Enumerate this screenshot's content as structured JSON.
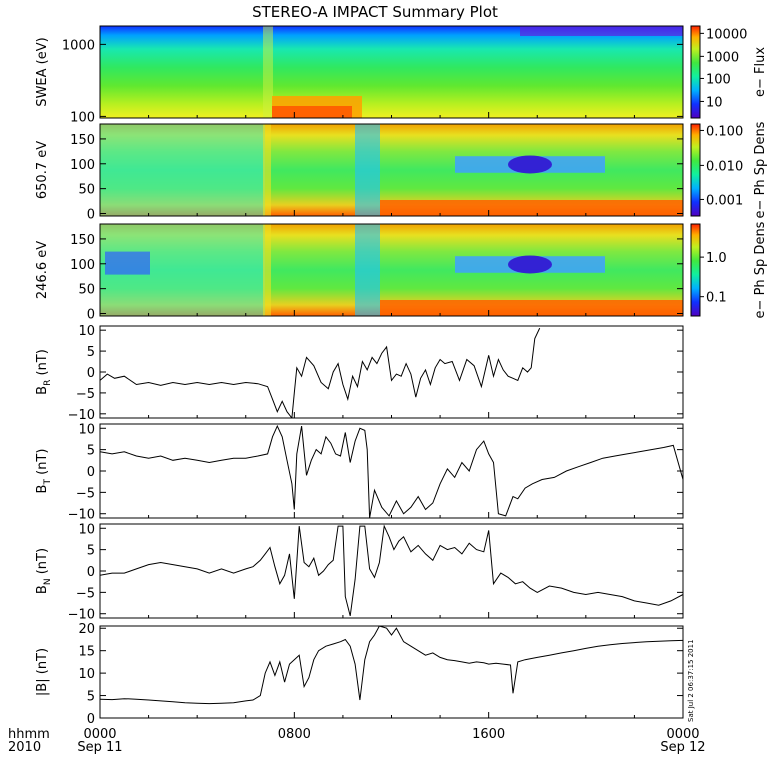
{
  "title": "STEREO-A IMPACT Summary Plot",
  "time_axis": {
    "row_label_1": "hhmm",
    "row_label_2": "2010",
    "ticks": [
      {
        "hhmm": "0000",
        "date": "Sep 11",
        "hour": 0
      },
      {
        "hhmm": "0800",
        "date": "",
        "hour": 8
      },
      {
        "hhmm": "1600",
        "date": "",
        "hour": 16
      },
      {
        "hhmm": "0000",
        "date": "Sep 12",
        "hour": 24
      }
    ]
  },
  "side_stamp": "Sat Jul  2 06:37:15 2011",
  "chart_data": [
    {
      "type": "heatmap",
      "ylabel": "SWEA (eV)",
      "yscale": "log",
      "ylim": [
        95,
        1800
      ],
      "yticks": [
        {
          "v": 100,
          "label": "100"
        },
        {
          "v": 1000,
          "label": "1000"
        }
      ],
      "colorbar": {
        "label": "e− Flux",
        "scale": "log",
        "ticks": [
          {
            "f": 0.92,
            "label": "10000"
          },
          {
            "f": 0.67,
            "label": "1000"
          },
          {
            "f": 0.43,
            "label": "100"
          },
          {
            "f": 0.18,
            "label": "10"
          }
        ]
      },
      "colors": [
        "#1020ff",
        "#00a0ff",
        "#18f090",
        "#40e840",
        "#a8f020",
        "#f0f020",
        "#ff9000"
      ]
    },
    {
      "type": "heatmap",
      "ylabel": "650.7 eV",
      "ylim": [
        -5,
        180
      ],
      "yticks": [
        {
          "v": 0,
          "label": "0"
        },
        {
          "v": 50,
          "label": "50"
        },
        {
          "v": 100,
          "label": "100"
        },
        {
          "v": 150,
          "label": "150"
        }
      ],
      "colorbar": {
        "label": "e− Ph Sp Dens",
        "scale": "log",
        "ticks": [
          {
            "f": 0.93,
            "label": "0.100"
          },
          {
            "f": 0.55,
            "label": "0.010"
          },
          {
            "f": 0.18,
            "label": "0.001"
          }
        ]
      }
    },
    {
      "type": "heatmap",
      "ylabel": "246.6 eV",
      "ylim": [
        -5,
        180
      ],
      "yticks": [
        {
          "v": 0,
          "label": "0"
        },
        {
          "v": 50,
          "label": "50"
        },
        {
          "v": 100,
          "label": "100"
        },
        {
          "v": 150,
          "label": "150"
        }
      ],
      "colorbar": {
        "label": "e− Ph Sp Dens",
        "scale": "log",
        "ticks": [
          {
            "f": 0.64,
            "label": "1.0"
          },
          {
            "f": 0.21,
            "label": "0.1"
          }
        ]
      }
    },
    {
      "type": "line",
      "ylabel": "B_R (nT)",
      "ylabel_main": "B",
      "ylabel_sub": "R",
      "ylabel_unit": "(nT)",
      "ylim": [
        -11,
        11
      ],
      "yticks": [
        {
          "v": -10,
          "label": "−10"
        },
        {
          "v": -5,
          "label": "−5"
        },
        {
          "v": 0,
          "label": "0"
        },
        {
          "v": 5,
          "label": "5"
        },
        {
          "v": 10,
          "label": "10"
        }
      ],
      "x": [
        0,
        0.3,
        0.6,
        1,
        1.5,
        2,
        2.5,
        3,
        3.5,
        4,
        4.5,
        5,
        5.5,
        6,
        6.5,
        6.9,
        7.1,
        7.3,
        7.5,
        7.7,
        7.9,
        8.0,
        8.1,
        8.3,
        8.5,
        8.8,
        9.1,
        9.4,
        9.6,
        9.8,
        10.0,
        10.2,
        10.4,
        10.6,
        10.8,
        11.0,
        11.2,
        11.4,
        11.6,
        11.8,
        12.0,
        12.2,
        12.4,
        12.6,
        12.8,
        13.0,
        13.2,
        13.4,
        13.6,
        13.8,
        14.0,
        14.2,
        14.5,
        14.8,
        15.1,
        15.4,
        15.7,
        16.0,
        16.2,
        16.4,
        16.6,
        16.8,
        17.0,
        17.2,
        17.4,
        17.6,
        17.75,
        17.9,
        18.1
      ],
      "values": [
        -2.0,
        -0.5,
        -1.5,
        -1.0,
        -3.0,
        -2.5,
        -3.2,
        -2.5,
        -3.0,
        -2.5,
        -3.0,
        -2.5,
        -3.0,
        -2.5,
        -2.8,
        -3.5,
        -6.5,
        -9.5,
        -7.0,
        -9.5,
        -11.0,
        -5.0,
        1.0,
        -1.0,
        3.5,
        1.5,
        -2.5,
        -4.0,
        0.0,
        2.0,
        -3.0,
        -6.5,
        -1.0,
        -3.5,
        2.5,
        0.5,
        3.5,
        2.0,
        4.5,
        6.0,
        -2.0,
        -0.5,
        -1.0,
        2.0,
        -0.5,
        -6.0,
        -1.5,
        0.5,
        -3.0,
        1.0,
        3.0,
        2.0,
        2.5,
        -2.0,
        3.0,
        1.5,
        -3.5,
        4.0,
        -1.0,
        3.0,
        0.5,
        -1.0,
        -1.5,
        -2.0,
        1.0,
        0.0,
        1.0,
        8.0,
        10.5
      ]
    },
    {
      "type": "line",
      "ylabel": "B_T (nT)",
      "ylabel_main": "B",
      "ylabel_sub": "T",
      "ylabel_unit": "(nT)",
      "ylim": [
        -11,
        11
      ],
      "yticks": [
        {
          "v": -10,
          "label": "−10"
        },
        {
          "v": -5,
          "label": "−5"
        },
        {
          "v": 0,
          "label": "0"
        },
        {
          "v": 5,
          "label": "5"
        },
        {
          "v": 10,
          "label": "10"
        }
      ],
      "x": [
        0,
        0.5,
        1,
        1.5,
        2,
        2.5,
        3,
        3.5,
        4,
        4.5,
        5,
        5.5,
        6,
        6.5,
        6.9,
        7.1,
        7.3,
        7.5,
        7.7,
        7.9,
        8.0,
        8.1,
        8.3,
        8.5,
        8.7,
        8.9,
        9.1,
        9.3,
        9.5,
        9.7,
        9.9,
        10.1,
        10.3,
        10.5,
        10.7,
        10.9,
        11.0,
        11.1,
        11.3,
        11.6,
        11.9,
        12.2,
        12.5,
        12.8,
        13.1,
        13.4,
        13.7,
        14.0,
        14.3,
        14.6,
        14.9,
        15.2,
        15.5,
        15.8,
        16.0,
        16.2,
        16.4,
        16.7,
        17.0,
        17.2,
        17.5,
        17.8,
        18.2,
        18.7,
        19.2,
        19.7,
        20.2,
        20.7,
        21.2,
        21.7,
        22.2,
        22.7,
        23.2,
        23.6,
        24.0
      ],
      "values": [
        4.5,
        4.0,
        4.5,
        3.5,
        3.0,
        3.5,
        2.5,
        3.0,
        2.5,
        2.0,
        2.5,
        3.0,
        3.0,
        3.5,
        4.0,
        8.0,
        10.5,
        8.0,
        2.5,
        -3.0,
        -9.0,
        4.0,
        10.5,
        -1.0,
        2.5,
        5.0,
        4.0,
        8.0,
        6.5,
        4.0,
        3.5,
        9.0,
        2.0,
        7.0,
        10.0,
        9.5,
        5.0,
        -11.0,
        -4.5,
        -8.5,
        -10.5,
        -7.0,
        -10.0,
        -8.5,
        -6.0,
        -9.0,
        -7.5,
        -3.0,
        0.5,
        -1.5,
        2.0,
        0.0,
        5.0,
        7.0,
        4.0,
        2.0,
        -10.0,
        -10.5,
        -6.0,
        -6.5,
        -4.0,
        -3.0,
        -2.0,
        -1.5,
        0.0,
        1.0,
        2.0,
        3.0,
        3.5,
        4.0,
        4.5,
        5.0,
        5.5,
        6.0,
        -2.0
      ]
    },
    {
      "type": "line",
      "ylabel": "B_N (nT)",
      "ylabel_main": "B",
      "ylabel_sub": "N",
      "ylabel_unit": "(nT)",
      "ylim": [
        -11,
        11
      ],
      "yticks": [
        {
          "v": -10,
          "label": "−10"
        },
        {
          "v": -5,
          "label": "−5"
        },
        {
          "v": 0,
          "label": "0"
        },
        {
          "v": 5,
          "label": "5"
        },
        {
          "v": 10,
          "label": "10"
        }
      ],
      "x": [
        0,
        0.5,
        1,
        1.5,
        2,
        2.5,
        3,
        3.5,
        4,
        4.5,
        5,
        5.5,
        6,
        6.3,
        6.6,
        6.8,
        7.0,
        7.2,
        7.4,
        7.6,
        7.8,
        8.0,
        8.2,
        8.4,
        8.6,
        8.8,
        9.0,
        9.2,
        9.4,
        9.6,
        9.8,
        10.0,
        10.1,
        10.3,
        10.5,
        10.7,
        10.9,
        11.1,
        11.3,
        11.5,
        11.7,
        11.9,
        12.1,
        12.3,
        12.5,
        12.8,
        13.1,
        13.4,
        13.7,
        14.0,
        14.3,
        14.6,
        14.9,
        15.2,
        15.5,
        15.8,
        16.0,
        16.2,
        16.5,
        16.8,
        17.1,
        17.4,
        17.7,
        18.0,
        18.5,
        19.0,
        19.5,
        20.0,
        20.5,
        21.0,
        21.5,
        22.0,
        22.5,
        23.0,
        23.5,
        24.0
      ],
      "values": [
        -1.0,
        -0.5,
        -0.5,
        0.5,
        1.5,
        2.0,
        1.5,
        1.0,
        0.5,
        -0.5,
        0.5,
        -0.5,
        0.5,
        1.0,
        2.5,
        4.0,
        5.5,
        1.0,
        -3.0,
        -1.0,
        4.0,
        -6.5,
        10.5,
        2.0,
        1.0,
        3.0,
        -1.0,
        0.0,
        1.5,
        2.5,
        10.5,
        10.5,
        -6.0,
        -10.5,
        -2.0,
        10.5,
        10.5,
        0.5,
        -1.5,
        2.0,
        10.5,
        8.0,
        5.0,
        7.0,
        8.0,
        4.5,
        6.0,
        4.0,
        2.5,
        6.0,
        5.0,
        5.5,
        4.0,
        6.5,
        5.0,
        4.5,
        9.5,
        -3.0,
        -0.5,
        -1.5,
        -3.0,
        -2.5,
        -4.0,
        -5.0,
        -3.5,
        -4.0,
        -5.0,
        -5.5,
        -5.0,
        -5.5,
        -6.0,
        -7.0,
        -7.5,
        -8.0,
        -7.0,
        -5.5
      ]
    },
    {
      "type": "line",
      "ylabel": "|B| (nT)",
      "ylabel_main": "|B|",
      "ylabel_sub": "",
      "ylabel_unit": "(nT)",
      "ylim": [
        0,
        20.5
      ],
      "yticks": [
        {
          "v": 0,
          "label": "0"
        },
        {
          "v": 5,
          "label": "5"
        },
        {
          "v": 10,
          "label": "10"
        },
        {
          "v": 15,
          "label": "15"
        },
        {
          "v": 20,
          "label": "20"
        }
      ],
      "x": [
        0,
        0.5,
        1,
        1.5,
        2,
        2.5,
        3,
        3.5,
        4,
        4.5,
        5,
        5.5,
        6,
        6.3,
        6.6,
        6.8,
        7.0,
        7.2,
        7.4,
        7.6,
        7.8,
        8.0,
        8.2,
        8.4,
        8.6,
        8.8,
        9.0,
        9.3,
        9.6,
        9.9,
        10.1,
        10.3,
        10.5,
        10.7,
        10.9,
        11.1,
        11.3,
        11.5,
        11.8,
        12.0,
        12.2,
        12.5,
        12.8,
        13.1,
        13.4,
        13.7,
        14.0,
        14.3,
        14.6,
        14.9,
        15.2,
        15.5,
        15.8,
        16.0,
        16.3,
        16.6,
        16.9,
        17.0,
        17.2,
        17.5,
        18.0,
        18.5,
        19.0,
        19.5,
        20.0,
        20.5,
        21.0,
        21.5,
        22.0,
        22.5,
        23.0,
        23.5,
        24.0
      ],
      "values": [
        4.2,
        4.1,
        4.3,
        4.2,
        4.0,
        3.8,
        3.6,
        3.4,
        3.3,
        3.2,
        3.3,
        3.4,
        3.8,
        4.0,
        5.0,
        10.0,
        12.5,
        9.5,
        12.5,
        8.0,
        12.0,
        13.0,
        14.0,
        7.0,
        9.0,
        13.0,
        15.0,
        16.0,
        16.5,
        17.0,
        17.5,
        16.0,
        12.0,
        4.0,
        13.0,
        17.0,
        18.5,
        20.5,
        20.0,
        18.5,
        20.0,
        17.0,
        16.0,
        15.0,
        14.0,
        14.5,
        13.5,
        13.0,
        12.8,
        12.5,
        12.2,
        12.5,
        12.3,
        12.0,
        12.2,
        12.0,
        11.8,
        5.5,
        12.5,
        13.0,
        13.5,
        14.0,
        14.5,
        15.0,
        15.5,
        16.0,
        16.3,
        16.6,
        16.8,
        17.0,
        17.1,
        17.2,
        17.3
      ]
    }
  ]
}
